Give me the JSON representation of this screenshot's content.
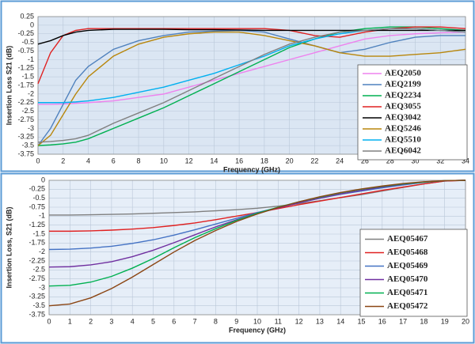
{
  "chart_data": [
    {
      "type": "line",
      "x_label": "Frequency (GHz)",
      "y_label": "Insertion Loss S21 (dB)",
      "x": [
        0,
        1,
        2,
        3,
        4,
        6,
        8,
        10,
        12,
        14,
        16,
        18,
        20,
        22,
        24,
        26,
        28,
        30,
        32,
        34
      ],
      "xlim": [
        0,
        34
      ],
      "xticks": [
        0,
        2,
        4,
        6,
        8,
        10,
        12,
        14,
        16,
        18,
        20,
        22,
        24,
        26,
        28,
        30,
        32,
        34
      ],
      "ylim": [
        -3.75,
        0.25
      ],
      "yticks": [
        0.25,
        0,
        -0.25,
        -0.5,
        -0.75,
        -1,
        -1.25,
        -1.5,
        -1.75,
        -2,
        -2.25,
        -2.5,
        -2.75,
        -3,
        -3.25,
        -3.5,
        -3.75
      ],
      "grid": true,
      "series": [
        {
          "name": "AEQ2050",
          "color": "#ee82ee",
          "values": [
            -2.3,
            -2.3,
            -2.29,
            -2.27,
            -2.25,
            -2.2,
            -2.1,
            -2.0,
            -1.8,
            -1.6,
            -1.4,
            -1.2,
            -1.0,
            -0.8,
            -0.6,
            -0.4,
            -0.3,
            -0.25,
            -0.22,
            -0.2
          ]
        },
        {
          "name": "AEQ2199",
          "color": "#4f81bd",
          "values": [
            -3.5,
            -3.0,
            -2.3,
            -1.6,
            -1.2,
            -0.7,
            -0.45,
            -0.3,
            -0.2,
            -0.17,
            -0.15,
            -0.2,
            -0.4,
            -0.6,
            -0.8,
            -0.7,
            -0.5,
            -0.35,
            -0.3,
            -0.3
          ]
        },
        {
          "name": "AEQ2234",
          "color": "#00b050",
          "values": [
            -3.5,
            -3.48,
            -3.45,
            -3.4,
            -3.3,
            -3.0,
            -2.7,
            -2.4,
            -2.05,
            -1.7,
            -1.35,
            -1.0,
            -0.65,
            -0.4,
            -0.2,
            -0.1,
            -0.05,
            -0.05,
            -0.1,
            -0.15
          ]
        },
        {
          "name": "AEQ3055",
          "color": "#e02020",
          "values": [
            -1.7,
            -0.8,
            -0.3,
            -0.15,
            -0.1,
            -0.1,
            -0.1,
            -0.1,
            -0.1,
            -0.1,
            -0.1,
            -0.1,
            -0.15,
            -0.3,
            -0.35,
            -0.2,
            -0.1,
            -0.05,
            -0.05,
            -0.1
          ]
        },
        {
          "name": "AEQ3042",
          "color": "#000000",
          "values": [
            -0.55,
            -0.45,
            -0.3,
            -0.2,
            -0.15,
            -0.12,
            -0.12,
            -0.12,
            -0.13,
            -0.13,
            -0.14,
            -0.15,
            -0.15,
            -0.15,
            -0.15,
            -0.15,
            -0.15,
            -0.15,
            -0.15,
            -0.15
          ]
        },
        {
          "name": "AEQ5246",
          "color": "#b8860b",
          "values": [
            -3.5,
            -3.2,
            -2.6,
            -2.0,
            -1.5,
            -0.9,
            -0.55,
            -0.35,
            -0.25,
            -0.2,
            -0.2,
            -0.3,
            -0.45,
            -0.6,
            -0.8,
            -0.9,
            -0.9,
            -0.85,
            -0.8,
            -0.7
          ]
        },
        {
          "name": "AEQ5510",
          "color": "#00b0f0",
          "values": [
            -2.25,
            -2.25,
            -2.25,
            -2.23,
            -2.2,
            -2.1,
            -1.95,
            -1.8,
            -1.6,
            -1.4,
            -1.15,
            -0.9,
            -0.6,
            -0.4,
            -0.25,
            -0.15,
            -0.1,
            -0.1,
            -0.15,
            -0.2
          ]
        },
        {
          "name": "AEQ6042",
          "color": "#808080",
          "values": [
            -3.4,
            -3.38,
            -3.35,
            -3.3,
            -3.2,
            -2.85,
            -2.55,
            -2.25,
            -1.9,
            -1.55,
            -1.2,
            -0.85,
            -0.55,
            -0.35,
            -0.2,
            -0.15,
            -0.1,
            -0.1,
            -0.15,
            -0.2
          ]
        }
      ]
    },
    {
      "type": "line",
      "x_label": "Frequency (GHz)",
      "y_label": "Insertion Loss, S21 (dB)",
      "x": [
        0,
        1,
        2,
        3,
        4,
        5,
        6,
        7,
        8,
        9,
        10,
        11,
        12,
        13,
        14,
        15,
        16,
        17,
        18,
        19,
        20
      ],
      "xlim": [
        0,
        20
      ],
      "xticks": [
        0,
        1,
        2,
        3,
        4,
        5,
        6,
        7,
        8,
        9,
        10,
        11,
        12,
        13,
        14,
        15,
        16,
        17,
        18,
        19,
        20
      ],
      "ylim": [
        -3.75,
        0
      ],
      "yticks": [
        0,
        -0.25,
        -0.5,
        -0.75,
        -1,
        -1.25,
        -1.5,
        -1.75,
        -2,
        -2.25,
        -2.5,
        -2.75,
        -3,
        -3.25,
        -3.5,
        -3.75
      ],
      "grid": true,
      "series": [
        {
          "name": "AEQ05467",
          "color": "#7f7f7f",
          "values": [
            -0.97,
            -0.97,
            -0.96,
            -0.95,
            -0.94,
            -0.92,
            -0.9,
            -0.88,
            -0.85,
            -0.82,
            -0.78,
            -0.72,
            -0.65,
            -0.57,
            -0.48,
            -0.4,
            -0.3,
            -0.2,
            -0.1,
            -0.02,
            0
          ]
        },
        {
          "name": "AEQ05468",
          "color": "#e02020",
          "values": [
            -1.42,
            -1.42,
            -1.41,
            -1.39,
            -1.36,
            -1.32,
            -1.26,
            -1.19,
            -1.1,
            -1.0,
            -0.9,
            -0.79,
            -0.68,
            -0.58,
            -0.48,
            -0.38,
            -0.28,
            -0.19,
            -0.1,
            -0.02,
            0
          ]
        },
        {
          "name": "AEQ05469",
          "color": "#4472c4",
          "values": [
            -1.93,
            -1.92,
            -1.89,
            -1.84,
            -1.76,
            -1.66,
            -1.53,
            -1.38,
            -1.22,
            -1.06,
            -0.9,
            -0.76,
            -0.62,
            -0.5,
            -0.39,
            -0.3,
            -0.21,
            -0.13,
            -0.06,
            -0.01,
            0
          ]
        },
        {
          "name": "AEQ05470",
          "color": "#7030a0",
          "values": [
            -2.42,
            -2.41,
            -2.36,
            -2.27,
            -2.13,
            -1.95,
            -1.74,
            -1.52,
            -1.3,
            -1.1,
            -0.92,
            -0.77,
            -0.63,
            -0.5,
            -0.38,
            -0.28,
            -0.19,
            -0.11,
            -0.05,
            -0.01,
            0
          ]
        },
        {
          "name": "AEQ05471",
          "color": "#00b050",
          "values": [
            -2.95,
            -2.93,
            -2.84,
            -2.68,
            -2.45,
            -2.18,
            -1.88,
            -1.6,
            -1.35,
            -1.12,
            -0.92,
            -0.75,
            -0.6,
            -0.47,
            -0.35,
            -0.25,
            -0.17,
            -0.1,
            -0.05,
            -0.01,
            0
          ]
        },
        {
          "name": "AEQ05472",
          "color": "#8b4513",
          "values": [
            -3.5,
            -3.45,
            -3.28,
            -3.02,
            -2.7,
            -2.35,
            -2.0,
            -1.68,
            -1.4,
            -1.15,
            -0.94,
            -0.76,
            -0.6,
            -0.46,
            -0.34,
            -0.24,
            -0.16,
            -0.09,
            -0.04,
            -0.01,
            0
          ]
        }
      ]
    }
  ]
}
